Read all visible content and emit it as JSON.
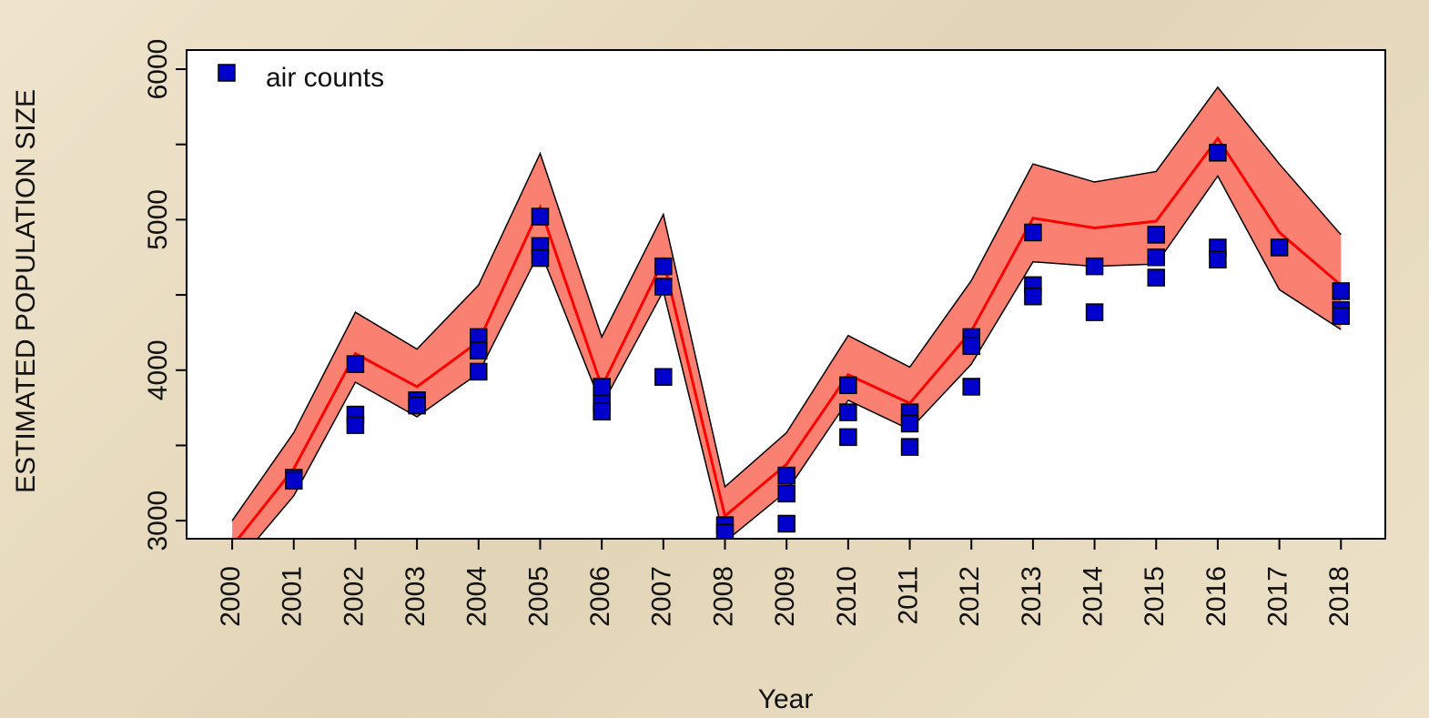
{
  "chart_data": {
    "type": "line",
    "xlabel": "Year",
    "ylabel": "ESTIMATED POPULATION SIZE",
    "xlim": [
      1999.26,
      2018.72
    ],
    "ylim": [
      2880,
      6127
    ],
    "xticks": [
      2000,
      2001,
      2002,
      2003,
      2004,
      2005,
      2006,
      2007,
      2008,
      2009,
      2010,
      2011,
      2012,
      2013,
      2014,
      2015,
      2016,
      2017,
      2018
    ],
    "yticks": [
      3000,
      4000,
      5000,
      6000
    ],
    "yminorticks": [
      3500,
      4500,
      5500
    ],
    "legend": "top-left",
    "x": [
      2000,
      2001,
      2002,
      2003,
      2004,
      2005,
      2006,
      2007,
      2008,
      2009,
      2010,
      2011,
      2012,
      2013,
      2014,
      2015,
      2016,
      2017,
      2018
    ],
    "line": {
      "color": "#ff0000",
      "values": [
        2830,
        3345,
        4110,
        3890,
        4190,
        5080,
        3890,
        4730,
        3030,
        3375,
        3970,
        3780,
        4260,
        5010,
        4945,
        4990,
        5540,
        4915,
        4565
      ]
    },
    "band": {
      "color": "#fa8072",
      "upper": [
        3000,
        3585,
        4385,
        4140,
        4565,
        5440,
        4220,
        5035,
        3225,
        3585,
        4230,
        4020,
        4595,
        5370,
        5250,
        5320,
        5880,
        5370,
        4900
      ],
      "lower": [
        2680,
        3165,
        3920,
        3690,
        3980,
        4795,
        3765,
        4525,
        2860,
        3195,
        3800,
        3605,
        4040,
        4720,
        4690,
        4705,
        5290,
        4535,
        4270
      ]
    },
    "points": {
      "name": "air counts",
      "color": "#0000cd",
      "x": [
        2001,
        2001,
        2002,
        2002,
        2002,
        2003,
        2003,
        2004,
        2004,
        2004,
        2005,
        2005,
        2005,
        2006,
        2006,
        2006,
        2007,
        2007,
        2007,
        2008,
        2008,
        2009,
        2009,
        2009,
        2010,
        2010,
        2010,
        2011,
        2011,
        2011,
        2012,
        2012,
        2012,
        2013,
        2013,
        2013,
        2014,
        2014,
        2015,
        2015,
        2015,
        2016,
        2016,
        2016,
        2017,
        2018,
        2018,
        2018
      ],
      "values": [
        3285,
        3265,
        4040,
        3705,
        3635,
        3800,
        3765,
        4220,
        4130,
        3990,
        5020,
        4825,
        4745,
        3890,
        3780,
        3725,
        4690,
        4555,
        3955,
        2970,
        2920,
        3300,
        3180,
        2980,
        3900,
        3720,
        3555,
        3720,
        3645,
        3490,
        4220,
        4160,
        3890,
        4915,
        4565,
        4490,
        4690,
        4385,
        4900,
        4750,
        4615,
        5445,
        4815,
        4735,
        4815,
        4525,
        4400,
        4360
      ]
    }
  }
}
